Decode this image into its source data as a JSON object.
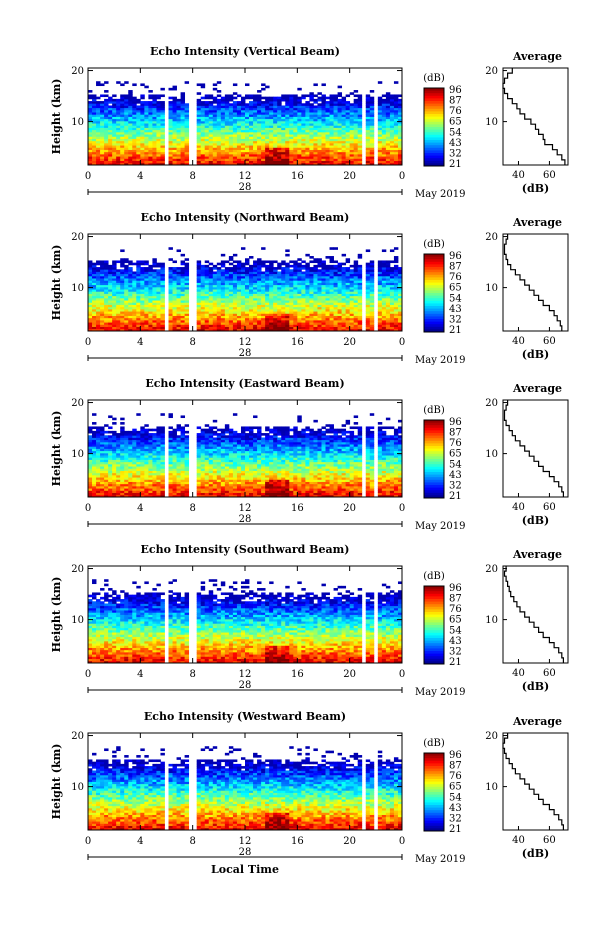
{
  "common": {
    "ylabel": "Height (km)",
    "x_ticks": [
      "0",
      "4",
      "8",
      "12",
      "16",
      "20",
      "0"
    ],
    "y_ticks": [
      "20",
      "10"
    ],
    "cbar_label": "(dB)",
    "cbar_ticks": [
      "96",
      "87",
      "76",
      "65",
      "54",
      "43",
      "32",
      "21"
    ],
    "avg_title": "Average",
    "avg_xticks": [
      "40",
      "60"
    ],
    "avg_xlabel": "(dB)",
    "month_label": "May 2019",
    "xlabel": "Local Time"
  },
  "chart_data": [
    {
      "type": "heatmap",
      "title": "Echo Intensity (Vertical Beam)",
      "date_label": "28",
      "xlabel": "",
      "ylabel": "Height (km)",
      "xlim": [
        0,
        24
      ],
      "ylim": [
        1.5,
        20.5
      ],
      "colorbar_range_db": [
        21,
        96
      ],
      "colormap": "jet",
      "average_profile": {
        "xlim": [
          30,
          72
        ],
        "height_km": [
          2,
          3,
          4,
          5,
          6,
          7,
          8,
          9,
          10,
          11,
          12,
          13,
          14,
          15,
          16,
          17,
          18,
          19,
          20
        ],
        "intensity_db": [
          70,
          68,
          65,
          62,
          57,
          56,
          53,
          51,
          48,
          44,
          41,
          39,
          36,
          33,
          31,
          30,
          31,
          33,
          36
        ]
      }
    },
    {
      "type": "heatmap",
      "title": "Echo Intensity (Northward Beam)",
      "date_label": "28",
      "xlabel": "",
      "ylabel": "Height (km)",
      "xlim": [
        0,
        24
      ],
      "ylim": [
        1.5,
        20.5
      ],
      "colorbar_range_db": [
        21,
        96
      ],
      "colormap": "jet",
      "average_profile": {
        "xlim": [
          30,
          72
        ],
        "height_km": [
          2,
          3,
          4,
          5,
          6,
          7,
          8,
          9,
          10,
          11,
          12,
          13,
          14,
          15,
          16,
          17,
          18,
          19,
          20
        ],
        "intensity_db": [
          68,
          67,
          65,
          63,
          60,
          56,
          53,
          50,
          47,
          44,
          41,
          38,
          35,
          33,
          32,
          31,
          31,
          32,
          33
        ]
      }
    },
    {
      "type": "heatmap",
      "title": "Echo Intensity (Eastward Beam)",
      "date_label": "28",
      "xlabel": "",
      "ylabel": "Height (km)",
      "xlim": [
        0,
        24
      ],
      "ylim": [
        1.5,
        20.5
      ],
      "colorbar_range_db": [
        21,
        96
      ],
      "colormap": "jet",
      "average_profile": {
        "xlim": [
          30,
          72
        ],
        "height_km": [
          2,
          3,
          4,
          5,
          6,
          7,
          8,
          9,
          10,
          11,
          12,
          13,
          14,
          15,
          16,
          17,
          18,
          19,
          20
        ],
        "intensity_db": [
          69,
          68,
          66,
          63,
          60,
          56,
          53,
          50,
          47,
          44,
          41,
          38,
          36,
          34,
          32,
          31,
          31,
          32,
          33
        ]
      }
    },
    {
      "type": "heatmap",
      "title": "Echo Intensity (Southward Beam)",
      "date_label": "28",
      "xlabel": "",
      "ylabel": "Height (km)",
      "xlim": [
        0,
        24
      ],
      "ylim": [
        1.5,
        20.5
      ],
      "colorbar_range_db": [
        21,
        96
      ],
      "colormap": "jet",
      "average_profile": {
        "xlim": [
          30,
          72
        ],
        "height_km": [
          2,
          3,
          4,
          5,
          6,
          7,
          8,
          9,
          10,
          11,
          12,
          13,
          14,
          15,
          16,
          17,
          18,
          19,
          20
        ],
        "intensity_db": [
          69,
          68,
          66,
          63,
          60,
          56,
          53,
          50,
          47,
          44,
          41,
          39,
          37,
          35,
          34,
          33,
          32,
          31,
          32
        ]
      }
    },
    {
      "type": "heatmap",
      "title": "Echo Intensity (Westward Beam)",
      "date_label": "28",
      "xlabel": "Local Time",
      "ylabel": "Height (km)",
      "xlim": [
        0,
        24
      ],
      "ylim": [
        1.5,
        20.5
      ],
      "colorbar_range_db": [
        21,
        96
      ],
      "colormap": "jet",
      "average_profile": {
        "xlim": [
          30,
          72
        ],
        "height_km": [
          2,
          3,
          4,
          5,
          6,
          7,
          8,
          9,
          10,
          11,
          12,
          13,
          14,
          15,
          16,
          17,
          18,
          19,
          20
        ],
        "intensity_db": [
          69,
          68,
          66,
          63,
          60,
          56,
          53,
          50,
          47,
          44,
          41,
          38,
          36,
          34,
          32,
          31,
          30,
          31,
          33
        ]
      }
    }
  ]
}
